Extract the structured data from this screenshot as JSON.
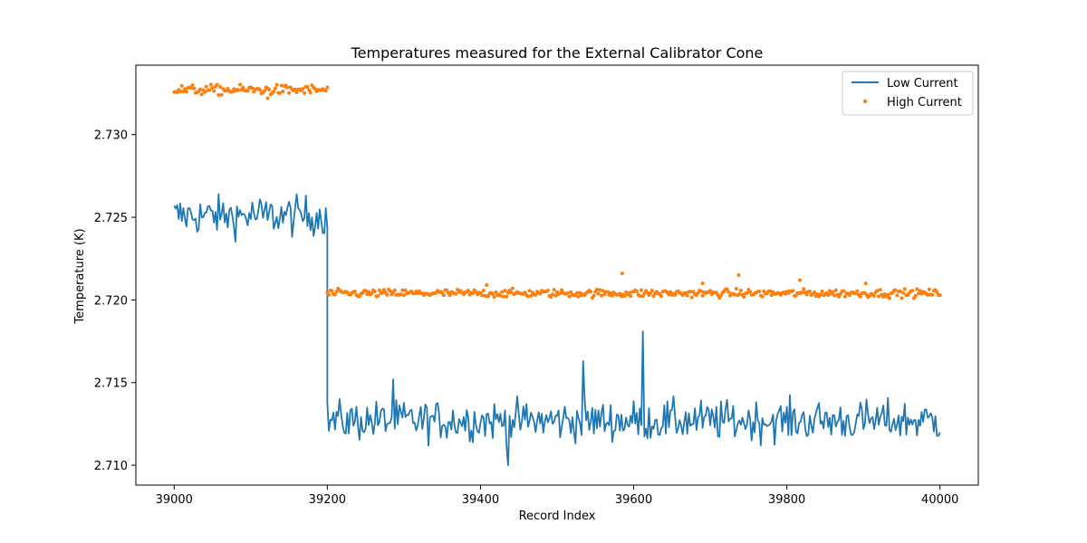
{
  "chart_data": {
    "type": "line",
    "title": "Temperatures measured for the External Calibrator Cone",
    "xlabel": "Record Index",
    "ylabel": "Temperature (K)",
    "xlim": [
      38950,
      40050
    ],
    "ylim": [
      2.7088,
      2.7342
    ],
    "xticks": [
      39000,
      39200,
      39400,
      39600,
      39800,
      40000
    ],
    "yticks": [
      2.71,
      2.715,
      2.72,
      2.725,
      2.73
    ],
    "ytick_labels": [
      "2.710",
      "2.715",
      "2.720",
      "2.725",
      "2.730"
    ],
    "legend_position": "top-right",
    "series": [
      {
        "name": "Low Current",
        "style": "line",
        "color": "#1f77b4",
        "segments": [
          {
            "x_start": 39000,
            "x_end": 39200,
            "mean": 2.7251,
            "noise": 0.0008,
            "min": 2.7232,
            "max": 2.7264
          },
          {
            "x_start": 39200,
            "x_end": 40000,
            "mean": 2.7127,
            "noise": 0.0008,
            "min": 2.71,
            "max": 2.7143
          }
        ],
        "spikes": [
          {
            "x": 39287,
            "y": 2.7152
          },
          {
            "x": 39535,
            "y": 2.7163
          },
          {
            "x": 39613,
            "y": 2.7181
          },
          {
            "x": 39437,
            "y": 2.71
          }
        ]
      },
      {
        "name": "High Current",
        "style": "scatter",
        "color": "#ff7f0e",
        "segments": [
          {
            "x_start": 39000,
            "x_end": 39200,
            "mean": 2.7327,
            "noise": 0.00015
          },
          {
            "x_start": 39200,
            "x_end": 40000,
            "mean": 2.7204,
            "noise": 0.00012
          }
        ],
        "outliers": [
          {
            "x": 39585,
            "y": 2.7216
          },
          {
            "x": 39737,
            "y": 2.7215
          },
          {
            "x": 39817,
            "y": 2.7212
          },
          {
            "x": 39903,
            "y": 2.721
          },
          {
            "x": 39690,
            "y": 2.721
          },
          {
            "x": 39408,
            "y": 2.7209
          },
          {
            "x": 39122,
            "y": 2.7322
          }
        ]
      }
    ]
  }
}
